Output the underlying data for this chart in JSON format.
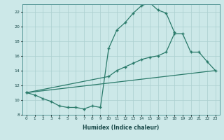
{
  "title": "",
  "xlabel": "Humidex (Indice chaleur)",
  "bg_color": "#cce8e8",
  "line_color": "#2a7a6a",
  "grid_color": "#aacfcf",
  "xmin": -0.5,
  "xmax": 23.5,
  "ymin": 8,
  "ymax": 23,
  "yticks": [
    8,
    10,
    12,
    14,
    16,
    18,
    20,
    22
  ],
  "xticks": [
    0,
    1,
    2,
    3,
    4,
    5,
    6,
    7,
    8,
    9,
    10,
    11,
    12,
    13,
    14,
    15,
    16,
    17,
    18,
    19,
    20,
    21,
    22,
    23
  ],
  "line1_x": [
    0,
    1,
    2,
    3,
    4,
    5,
    6,
    7,
    8,
    9,
    10,
    11,
    12,
    13,
    14,
    15,
    16,
    17,
    18
  ],
  "line1_y": [
    11.0,
    10.7,
    10.2,
    9.8,
    9.2,
    9.0,
    9.0,
    8.8,
    9.2,
    9.0,
    17.0,
    19.5,
    20.5,
    21.8,
    22.8,
    23.2,
    22.2,
    21.8,
    19.2
  ],
  "line2_x": [
    0,
    10,
    11,
    12,
    13,
    14,
    15,
    16,
    17,
    18,
    19,
    20,
    21,
    22,
    23
  ],
  "line2_y": [
    11.0,
    13.2,
    14.0,
    14.5,
    15.0,
    15.5,
    15.8,
    16.0,
    16.5,
    19.0,
    19.0,
    16.5,
    16.5,
    15.2,
    14.0
  ],
  "line3_x": [
    0,
    23
  ],
  "line3_y": [
    11.0,
    14.0
  ]
}
